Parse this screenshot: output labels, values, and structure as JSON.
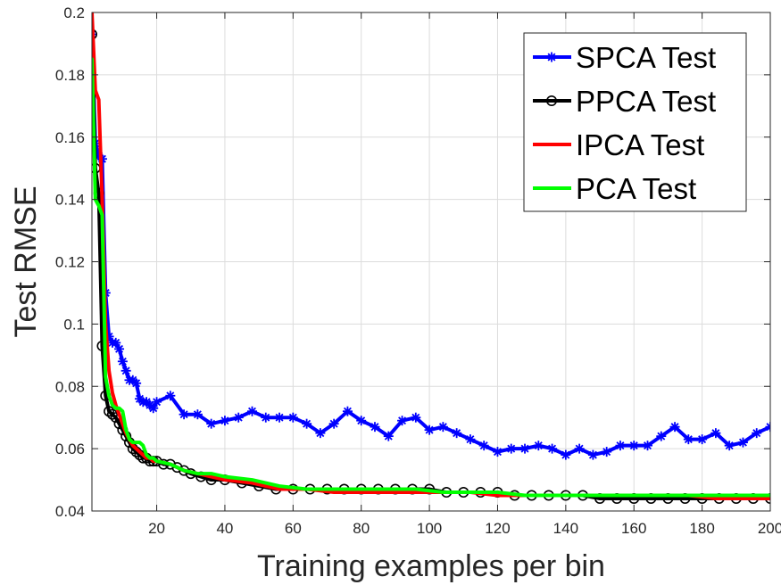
{
  "chart_data": {
    "type": "line",
    "title": "",
    "xlabel": "Training examples per bin",
    "ylabel": "Test RMSE",
    "xlim": [
      1,
      200
    ],
    "ylim": [
      0.04,
      0.2
    ],
    "xticks": [
      20,
      40,
      60,
      80,
      100,
      120,
      140,
      160,
      180,
      200
    ],
    "yticks": [
      0.04,
      0.06,
      0.08,
      0.1,
      0.12,
      0.14,
      0.16,
      0.18,
      0.2
    ],
    "xtick_labels": [
      "20",
      "40",
      "60",
      "80",
      "100",
      "120",
      "140",
      "160",
      "180",
      "200"
    ],
    "ytick_labels": [
      "0.04",
      "0.06",
      "0.08",
      "0.1",
      "0.12",
      "0.14",
      "0.16",
      "0.18",
      "0.2"
    ],
    "grid": true,
    "legend_position": "top-right",
    "series": [
      {
        "name": "SPCA Test",
        "color": "#0000ff",
        "marker": "asterisk",
        "x": [
          1,
          2,
          3,
          4,
          5,
          6,
          7,
          8,
          9,
          10,
          11,
          12,
          13,
          14,
          15,
          16,
          17,
          18,
          19,
          20,
          24,
          28,
          32,
          36,
          40,
          44,
          48,
          52,
          56,
          60,
          64,
          68,
          72,
          76,
          80,
          84,
          88,
          92,
          96,
          100,
          104,
          108,
          112,
          116,
          120,
          124,
          128,
          132,
          136,
          140,
          144,
          148,
          152,
          156,
          160,
          164,
          168,
          172,
          176,
          180,
          184,
          188,
          192,
          196,
          200
        ],
        "values": [
          0.193,
          0.158,
          0.154,
          0.153,
          0.11,
          0.096,
          0.094,
          0.094,
          0.092,
          0.088,
          0.085,
          0.082,
          0.082,
          0.081,
          0.076,
          0.075,
          0.075,
          0.074,
          0.073,
          0.075,
          0.077,
          0.071,
          0.071,
          0.068,
          0.069,
          0.07,
          0.072,
          0.07,
          0.07,
          0.07,
          0.068,
          0.065,
          0.068,
          0.072,
          0.069,
          0.067,
          0.064,
          0.069,
          0.07,
          0.066,
          0.067,
          0.065,
          0.063,
          0.061,
          0.059,
          0.06,
          0.06,
          0.061,
          0.06,
          0.058,
          0.06,
          0.058,
          0.059,
          0.061,
          0.061,
          0.061,
          0.064,
          0.067,
          0.063,
          0.063,
          0.065,
          0.061,
          0.062,
          0.065,
          0.067
        ]
      },
      {
        "name": "PPCA Test",
        "color": "#000000",
        "marker": "circle",
        "x": [
          1,
          2,
          3,
          4,
          5,
          6,
          7,
          8,
          9,
          10,
          11,
          12,
          13,
          14,
          15,
          16,
          17,
          18,
          19,
          20,
          22,
          24,
          26,
          28,
          30,
          33,
          36,
          40,
          45,
          50,
          55,
          60,
          65,
          70,
          75,
          80,
          85,
          90,
          95,
          100,
          105,
          110,
          115,
          120,
          125,
          130,
          135,
          140,
          145,
          150,
          155,
          160,
          165,
          170,
          175,
          180,
          185,
          190,
          195,
          200
        ],
        "values": [
          0.193,
          0.15,
          0.142,
          0.093,
          0.077,
          0.072,
          0.071,
          0.07,
          0.068,
          0.066,
          0.064,
          0.062,
          0.06,
          0.059,
          0.058,
          0.057,
          0.057,
          0.056,
          0.056,
          0.056,
          0.055,
          0.055,
          0.054,
          0.053,
          0.052,
          0.051,
          0.05,
          0.05,
          0.049,
          0.048,
          0.047,
          0.047,
          0.047,
          0.047,
          0.047,
          0.047,
          0.047,
          0.047,
          0.047,
          0.047,
          0.046,
          0.046,
          0.046,
          0.046,
          0.045,
          0.045,
          0.045,
          0.045,
          0.045,
          0.044,
          0.044,
          0.044,
          0.044,
          0.044,
          0.044,
          0.044,
          0.044,
          0.044,
          0.044,
          0.044
        ]
      },
      {
        "name": "IPCA Test",
        "color": "#ff0000",
        "marker": "none",
        "x": [
          1,
          2,
          3,
          4,
          5,
          6,
          7,
          8,
          9,
          10,
          11,
          12,
          13,
          14,
          15,
          16,
          17,
          18,
          19,
          20,
          24,
          28,
          32,
          36,
          40,
          48,
          56,
          64,
          72,
          80,
          88,
          96,
          104,
          112,
          120,
          128,
          136,
          144,
          152,
          160,
          168,
          176,
          184,
          192,
          200
        ],
        "values": [
          0.2,
          0.175,
          0.172,
          0.14,
          0.1,
          0.085,
          0.078,
          0.074,
          0.071,
          0.068,
          0.065,
          0.063,
          0.061,
          0.06,
          0.059,
          0.058,
          0.057,
          0.057,
          0.056,
          0.056,
          0.055,
          0.053,
          0.052,
          0.051,
          0.05,
          0.049,
          0.047,
          0.047,
          0.046,
          0.046,
          0.046,
          0.046,
          0.046,
          0.046,
          0.045,
          0.045,
          0.045,
          0.045,
          0.045,
          0.045,
          0.045,
          0.045,
          0.044,
          0.044,
          0.044
        ]
      },
      {
        "name": "PCA Test",
        "color": "#00ff00",
        "marker": "none",
        "x": [
          1,
          2,
          3,
          4,
          5,
          6,
          7,
          8,
          9,
          10,
          11,
          12,
          13,
          14,
          15,
          16,
          17,
          18,
          19,
          20,
          24,
          28,
          32,
          36,
          40,
          48,
          56,
          64,
          72,
          80,
          88,
          96,
          104,
          112,
          120,
          128,
          136,
          144,
          152,
          160,
          168,
          176,
          184,
          192,
          200
        ],
        "values": [
          0.185,
          0.14,
          0.138,
          0.135,
          0.083,
          0.077,
          0.074,
          0.073,
          0.073,
          0.072,
          0.066,
          0.063,
          0.062,
          0.062,
          0.062,
          0.061,
          0.058,
          0.057,
          0.057,
          0.056,
          0.055,
          0.053,
          0.052,
          0.052,
          0.051,
          0.05,
          0.048,
          0.047,
          0.047,
          0.047,
          0.047,
          0.047,
          0.046,
          0.046,
          0.046,
          0.045,
          0.045,
          0.045,
          0.045,
          0.045,
          0.045,
          0.045,
          0.045,
          0.045,
          0.045
        ]
      }
    ]
  }
}
